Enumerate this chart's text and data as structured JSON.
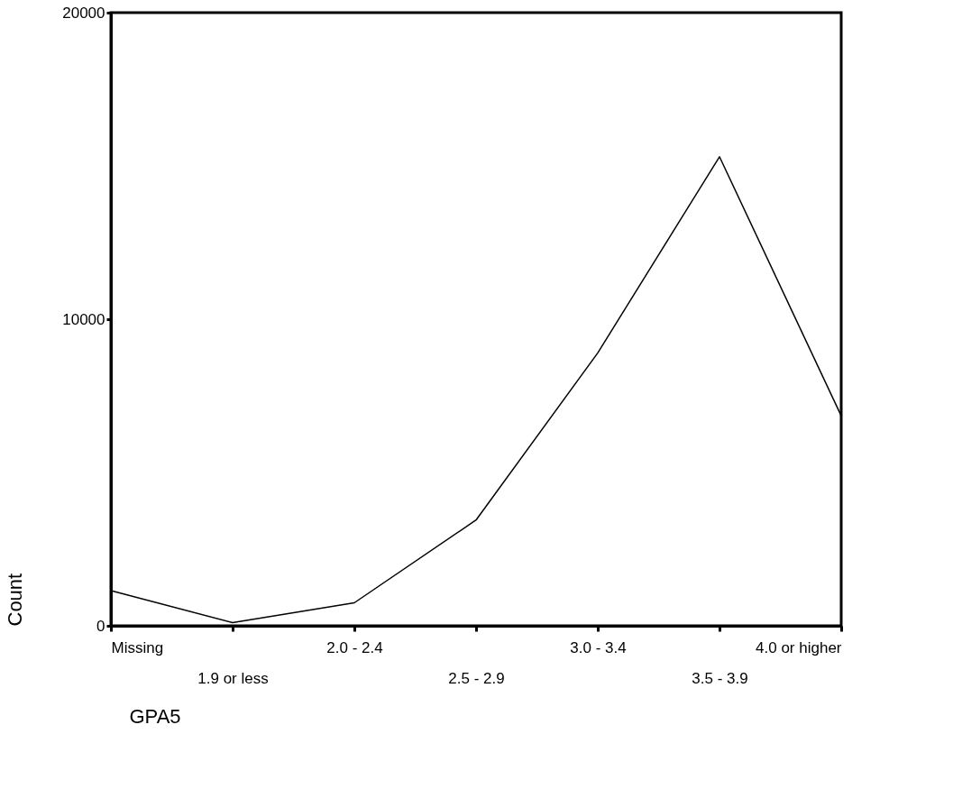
{
  "chart_data": {
    "type": "line",
    "xlabel": "GPA5",
    "ylabel": "Count",
    "categories": [
      "Missing",
      "1.9 or less",
      "2.0 - 2.4",
      "2.5 - 2.9",
      "3.0 - 3.4",
      "3.5 - 3.9",
      "4.0 or higher"
    ],
    "series": [
      {
        "color": "#000000",
        "values": [
          1150,
          100,
          750,
          3450,
          8900,
          15300,
          6850
        ]
      }
    ],
    "ylim": [
      0,
      20000
    ],
    "yticks": [
      0,
      10000,
      20000
    ],
    "grid": false,
    "legend": false,
    "marker": "none",
    "line_style": "solid"
  }
}
